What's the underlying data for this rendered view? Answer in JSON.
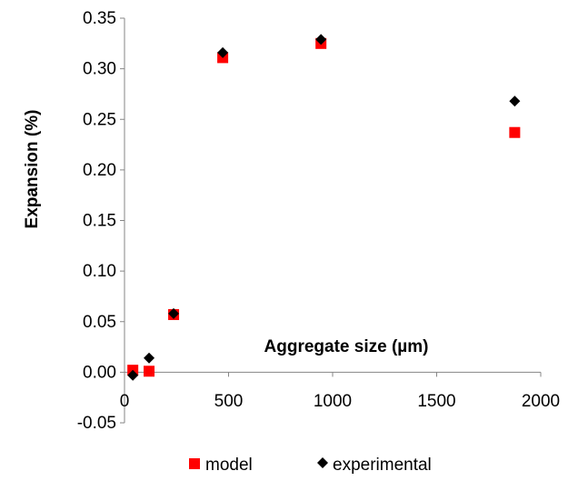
{
  "chart_data": {
    "type": "scatter",
    "title": "",
    "xlabel": "Aggregate size (µm)",
    "ylabel": "Expansion (%)",
    "xlim": [
      0,
      2000
    ],
    "ylim": [
      -0.05,
      0.35
    ],
    "xticks": [
      0,
      500,
      1000,
      1500,
      2000
    ],
    "yticks": [
      -0.05,
      0.0,
      0.05,
      0.1,
      0.15,
      0.2,
      0.25,
      0.3,
      0.35
    ],
    "xtick_labels": [
      "0",
      "500",
      "1000",
      "1500",
      "2000"
    ],
    "ytick_labels": [
      "-0.05",
      "0.00",
      "0.05",
      "0.10",
      "0.15",
      "0.20",
      "0.25",
      "0.30",
      "0.35"
    ],
    "grid": false,
    "legend_position": "bottom",
    "series": [
      {
        "name": "model",
        "marker": "square",
        "color": "#ff0000",
        "points": [
          {
            "x": 40,
            "y": 0.002
          },
          {
            "x": 118,
            "y": 0.001
          },
          {
            "x": 236,
            "y": 0.057
          },
          {
            "x": 472,
            "y": 0.311
          },
          {
            "x": 944,
            "y": 0.325
          },
          {
            "x": 1875,
            "y": 0.237
          }
        ]
      },
      {
        "name": "experimental",
        "marker": "diamond",
        "color": "#000000",
        "points": [
          {
            "x": 40,
            "y": -0.003
          },
          {
            "x": 118,
            "y": 0.014
          },
          {
            "x": 236,
            "y": 0.058
          },
          {
            "x": 472,
            "y": 0.316
          },
          {
            "x": 944,
            "y": 0.329
          },
          {
            "x": 1875,
            "y": 0.268
          }
        ]
      }
    ]
  }
}
